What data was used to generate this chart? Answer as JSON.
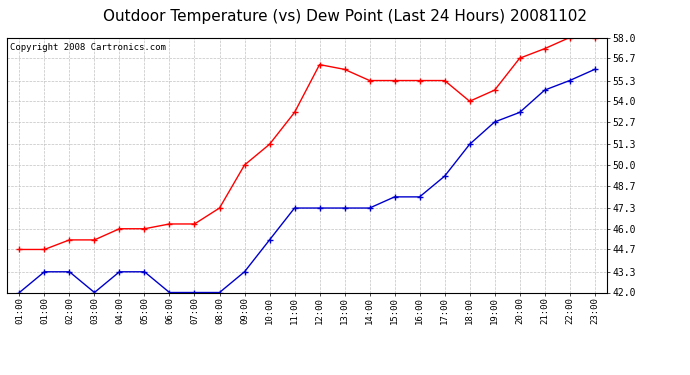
{
  "title": "Outdoor Temperature (vs) Dew Point (Last 24 Hours) 20081102",
  "copyright": "Copyright 2008 Cartronics.com",
  "x_labels": [
    "01:00",
    "01:00",
    "02:00",
    "03:00",
    "04:00",
    "05:00",
    "06:00",
    "07:00",
    "08:00",
    "09:00",
    "10:00",
    "11:00",
    "12:00",
    "13:00",
    "14:00",
    "15:00",
    "16:00",
    "17:00",
    "18:00",
    "19:00",
    "20:00",
    "21:00",
    "22:00",
    "23:00"
  ],
  "red_data": [
    44.7,
    44.7,
    45.3,
    45.3,
    46.0,
    46.0,
    46.3,
    46.3,
    47.3,
    50.0,
    51.3,
    53.3,
    56.3,
    56.0,
    55.3,
    55.3,
    55.3,
    55.3,
    54.0,
    54.7,
    56.7,
    57.3,
    58.0,
    58.0
  ],
  "blue_data": [
    42.0,
    43.3,
    43.3,
    42.0,
    43.3,
    43.3,
    42.0,
    42.0,
    42.0,
    43.3,
    45.3,
    47.3,
    47.3,
    47.3,
    47.3,
    48.0,
    48.0,
    49.3,
    51.3,
    52.7,
    53.3,
    54.7,
    55.3,
    56.0
  ],
  "y_min": 42.0,
  "y_max": 58.0,
  "y_ticks": [
    42.0,
    43.3,
    44.7,
    46.0,
    47.3,
    48.7,
    50.0,
    51.3,
    52.7,
    54.0,
    55.3,
    56.7,
    58.0
  ],
  "red_color": "#FF0000",
  "blue_color": "#0000CC",
  "bg_color": "#FFFFFF",
  "grid_color": "#BBBBBB",
  "title_fontsize": 11,
  "copyright_fontsize": 6.5
}
